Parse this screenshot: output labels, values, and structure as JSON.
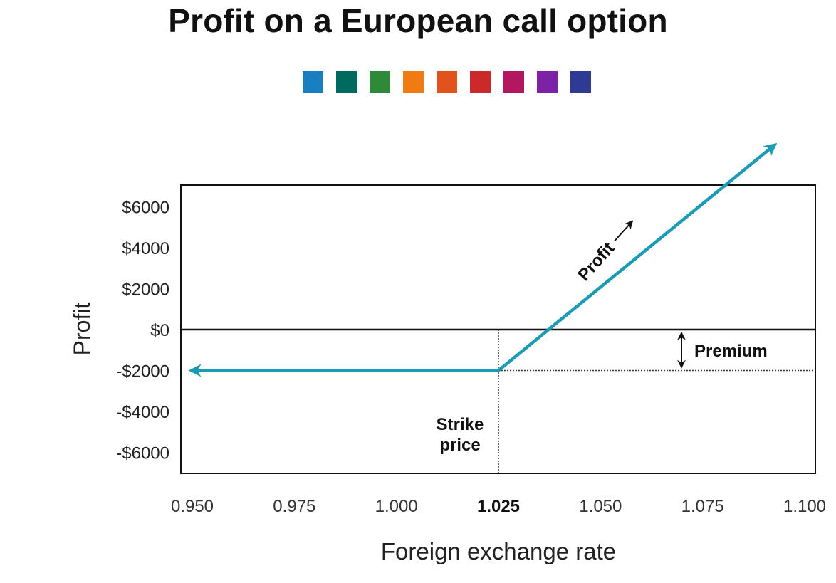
{
  "title": "Profit on a European call option",
  "palette": [
    "#1a7fc1",
    "#006a5e",
    "#2e8a39",
    "#f07b12",
    "#e2521d",
    "#cc2a2a",
    "#b3175f",
    "#7b22a6",
    "#2e3a94"
  ],
  "chart_data": {
    "type": "line",
    "title": "Profit on a European call option",
    "xlabel": "Foreign exchange rate",
    "ylabel": "Profit",
    "xlim": [
      0.95,
      1.1
    ],
    "ylim": [
      -7000,
      7000
    ],
    "x_ticks": [
      "0.950",
      "0.975",
      "1.000",
      "1.025",
      "1.050",
      "1.075",
      "1.100"
    ],
    "x_tick_values": [
      0.95,
      0.975,
      1.0,
      1.025,
      1.05,
      1.075,
      1.1
    ],
    "highlight_tick": "1.025",
    "y_ticks": [
      "$6000",
      "$4000",
      "$2000",
      "$0",
      "-$2000",
      "-$4000",
      "-$6000"
    ],
    "y_tick_values": [
      6000,
      4000,
      2000,
      0,
      -2000,
      -4000,
      -6000
    ],
    "strike": 1.025,
    "premium": -2000,
    "series": [
      {
        "x": [
          0.95,
          1.025,
          1.0925
        ],
        "y": [
          -2000,
          -2000,
          9000
        ],
        "color": "#1b9bb5"
      }
    ],
    "annotations": {
      "profit_label": "Profit",
      "premium_label": "Premium",
      "strike_label_line1": "Strike",
      "strike_label_line2": "price"
    },
    "grid": false
  }
}
